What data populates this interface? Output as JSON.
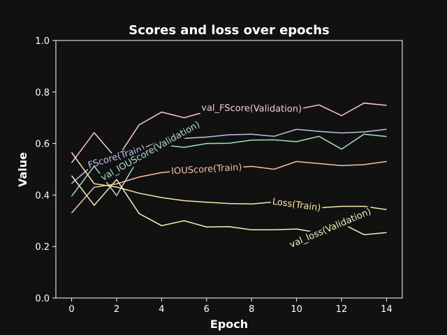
{
  "chart_data": {
    "type": "line",
    "title": "Scores and loss over epochs",
    "xlabel": "Epoch",
    "ylabel": "Value",
    "xlim": [
      -0.7,
      14.7
    ],
    "ylim": [
      0.0,
      1.0
    ],
    "xticks": [
      0,
      2,
      4,
      6,
      8,
      10,
      12,
      14
    ],
    "xtick_labels": [
      "0",
      "2",
      "4",
      "6",
      "8",
      "10",
      "12",
      "14"
    ],
    "yticks": [
      0.0,
      0.2,
      0.4,
      0.6,
      0.8,
      1.0
    ],
    "ytick_labels": [
      "0.0",
      "0.2",
      "0.4",
      "0.6",
      "0.8",
      "1.0"
    ],
    "grid": false,
    "legend": "inline labels on lines",
    "x": [
      0,
      1,
      2,
      3,
      4,
      5,
      6,
      7,
      8,
      9,
      10,
      11,
      12,
      13,
      14
    ],
    "series": [
      {
        "name": "val_FScore(Validation)",
        "color": "#fbc4dd",
        "values": [
          0.525,
          0.642,
          0.54,
          0.672,
          0.722,
          0.7,
          0.724,
          0.733,
          0.736,
          0.735,
          0.732,
          0.75,
          0.708,
          0.757,
          0.748
        ],
        "label_at": 8.0
      },
      {
        "name": "FScore(Train)",
        "color": "#c0c2e8",
        "values": [
          0.445,
          0.52,
          0.548,
          0.575,
          0.612,
          0.62,
          0.625,
          0.634,
          0.636,
          0.628,
          0.655,
          0.647,
          0.641,
          0.645,
          0.655
        ],
        "label_at": 2.0
      },
      {
        "name": "val_IOUScore(Validation)",
        "color": "#a7e0c4",
        "values": [
          0.395,
          0.512,
          0.398,
          0.546,
          0.595,
          0.585,
          0.6,
          0.601,
          0.613,
          0.614,
          0.607,
          0.628,
          0.578,
          0.636,
          0.627
        ],
        "label_at": 3.5
      },
      {
        "name": "IOUScore(Train)",
        "color": "#f7c3a2",
        "values": [
          0.33,
          0.43,
          0.443,
          0.47,
          0.487,
          0.495,
          0.5,
          0.505,
          0.511,
          0.5,
          0.53,
          0.522,
          0.514,
          0.518,
          0.53
        ],
        "label_at": 6.0
      },
      {
        "name": "Loss(Train)",
        "color": "#fde7a3",
        "values": [
          0.565,
          0.444,
          0.431,
          0.407,
          0.39,
          0.378,
          0.372,
          0.367,
          0.365,
          0.373,
          0.362,
          0.35,
          0.356,
          0.356,
          0.343
        ],
        "label_at": 10.0
      },
      {
        "name": "val_loss(Validation)",
        "color": "#f4f4b6",
        "values": [
          0.475,
          0.36,
          0.46,
          0.328,
          0.281,
          0.3,
          0.276,
          0.277,
          0.265,
          0.265,
          0.268,
          0.253,
          0.29,
          0.246,
          0.254
        ],
        "label_at": 11.5
      }
    ]
  }
}
